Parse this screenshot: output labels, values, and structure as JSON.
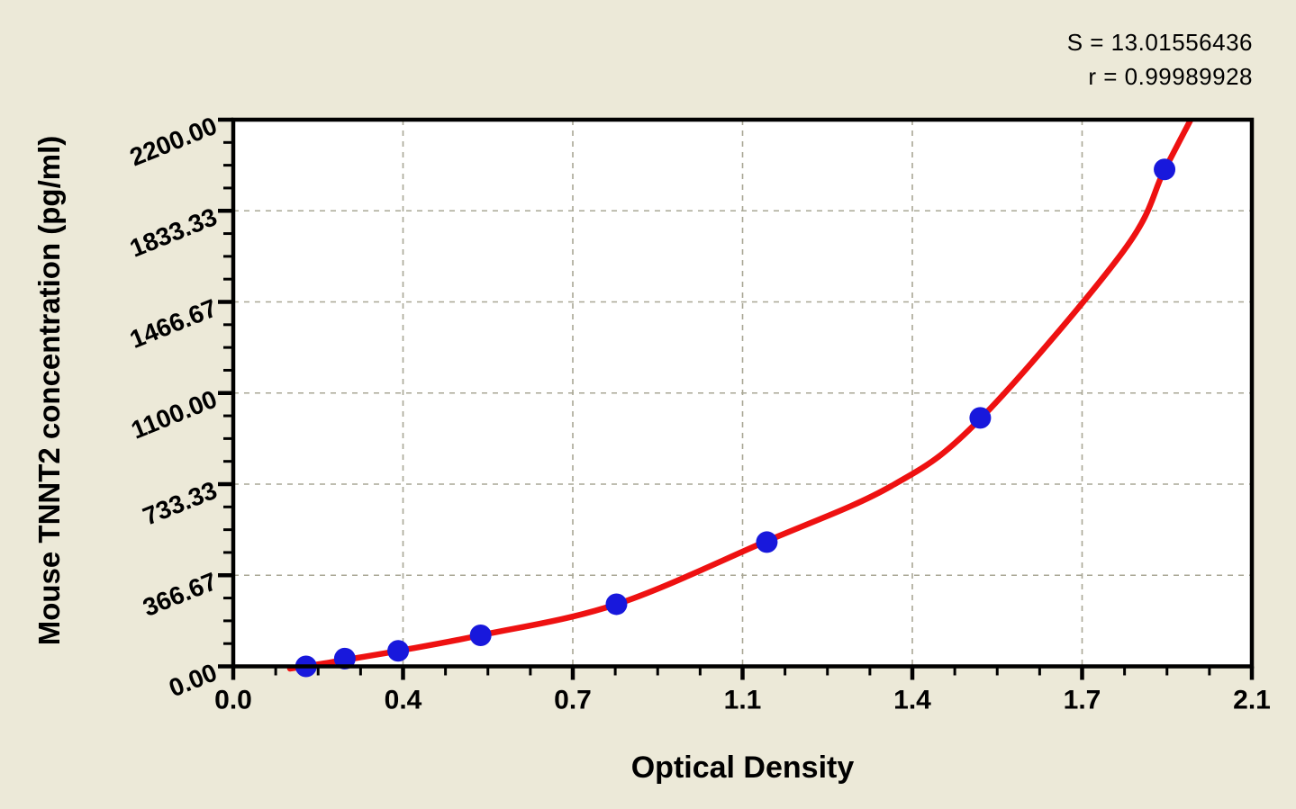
{
  "stats": {
    "s_label": "S = 13.01556436",
    "r_label": "r = 0.99989928"
  },
  "chart_data": {
    "type": "scatter",
    "title": "",
    "xlabel": "Optical Density",
    "ylabel": "Mouse TNNT2 concentration (pg/ml)",
    "x_axis": {
      "min": 0,
      "max": 2.1,
      "tick_labels": [
        "0.0",
        "0.4",
        "0.7",
        "1.1",
        "1.4",
        "1.7",
        "2.1"
      ],
      "minor_ticks_between_majors": 3
    },
    "y_axis": {
      "min": 0,
      "max": 2200,
      "tick_labels": [
        "0.00",
        "366.67",
        "733.33",
        "1100.00",
        "1466.67",
        "1833.33",
        "2200.00"
      ],
      "minor_ticks_between_majors": 3
    },
    "grid": "dashed gridlines at interior major ticks",
    "legend": "none",
    "annotations": {
      "S": "13.01556436",
      "r": "0.99989928"
    },
    "series": [
      {
        "name": "standard-points",
        "type": "scatter",
        "marker": "circle",
        "points": [
          {
            "od": 0.15,
            "conc": 0
          },
          {
            "od": 0.23,
            "conc": 31.25
          },
          {
            "od": 0.34,
            "conc": 62.5
          },
          {
            "od": 0.51,
            "conc": 125
          },
          {
            "od": 0.79,
            "conc": 250
          },
          {
            "od": 1.1,
            "conc": 500
          },
          {
            "od": 1.54,
            "conc": 1000
          },
          {
            "od": 1.92,
            "conc": 2000
          }
        ]
      },
      {
        "name": "fitted-curve",
        "type": "line",
        "samples": [
          [
            0.117,
            -9
          ],
          [
            0.154,
            2
          ],
          [
            0.234,
            27
          ],
          [
            0.342,
            63
          ],
          [
            0.509,
            125
          ],
          [
            0.787,
            248
          ],
          [
            1.097,
            502
          ],
          [
            1.357,
            726
          ],
          [
            1.539,
            994
          ],
          [
            1.834,
            1668
          ],
          [
            1.918,
            1990
          ],
          [
            1.974,
            2200
          ]
        ]
      }
    ]
  },
  "colors": {
    "background": "#ece9d8",
    "plot_background": "#ffffff",
    "frame": "#000000",
    "grid": "#a9a795",
    "curve": "#ee1111",
    "marker": "#1818dc",
    "text": "#000000"
  }
}
